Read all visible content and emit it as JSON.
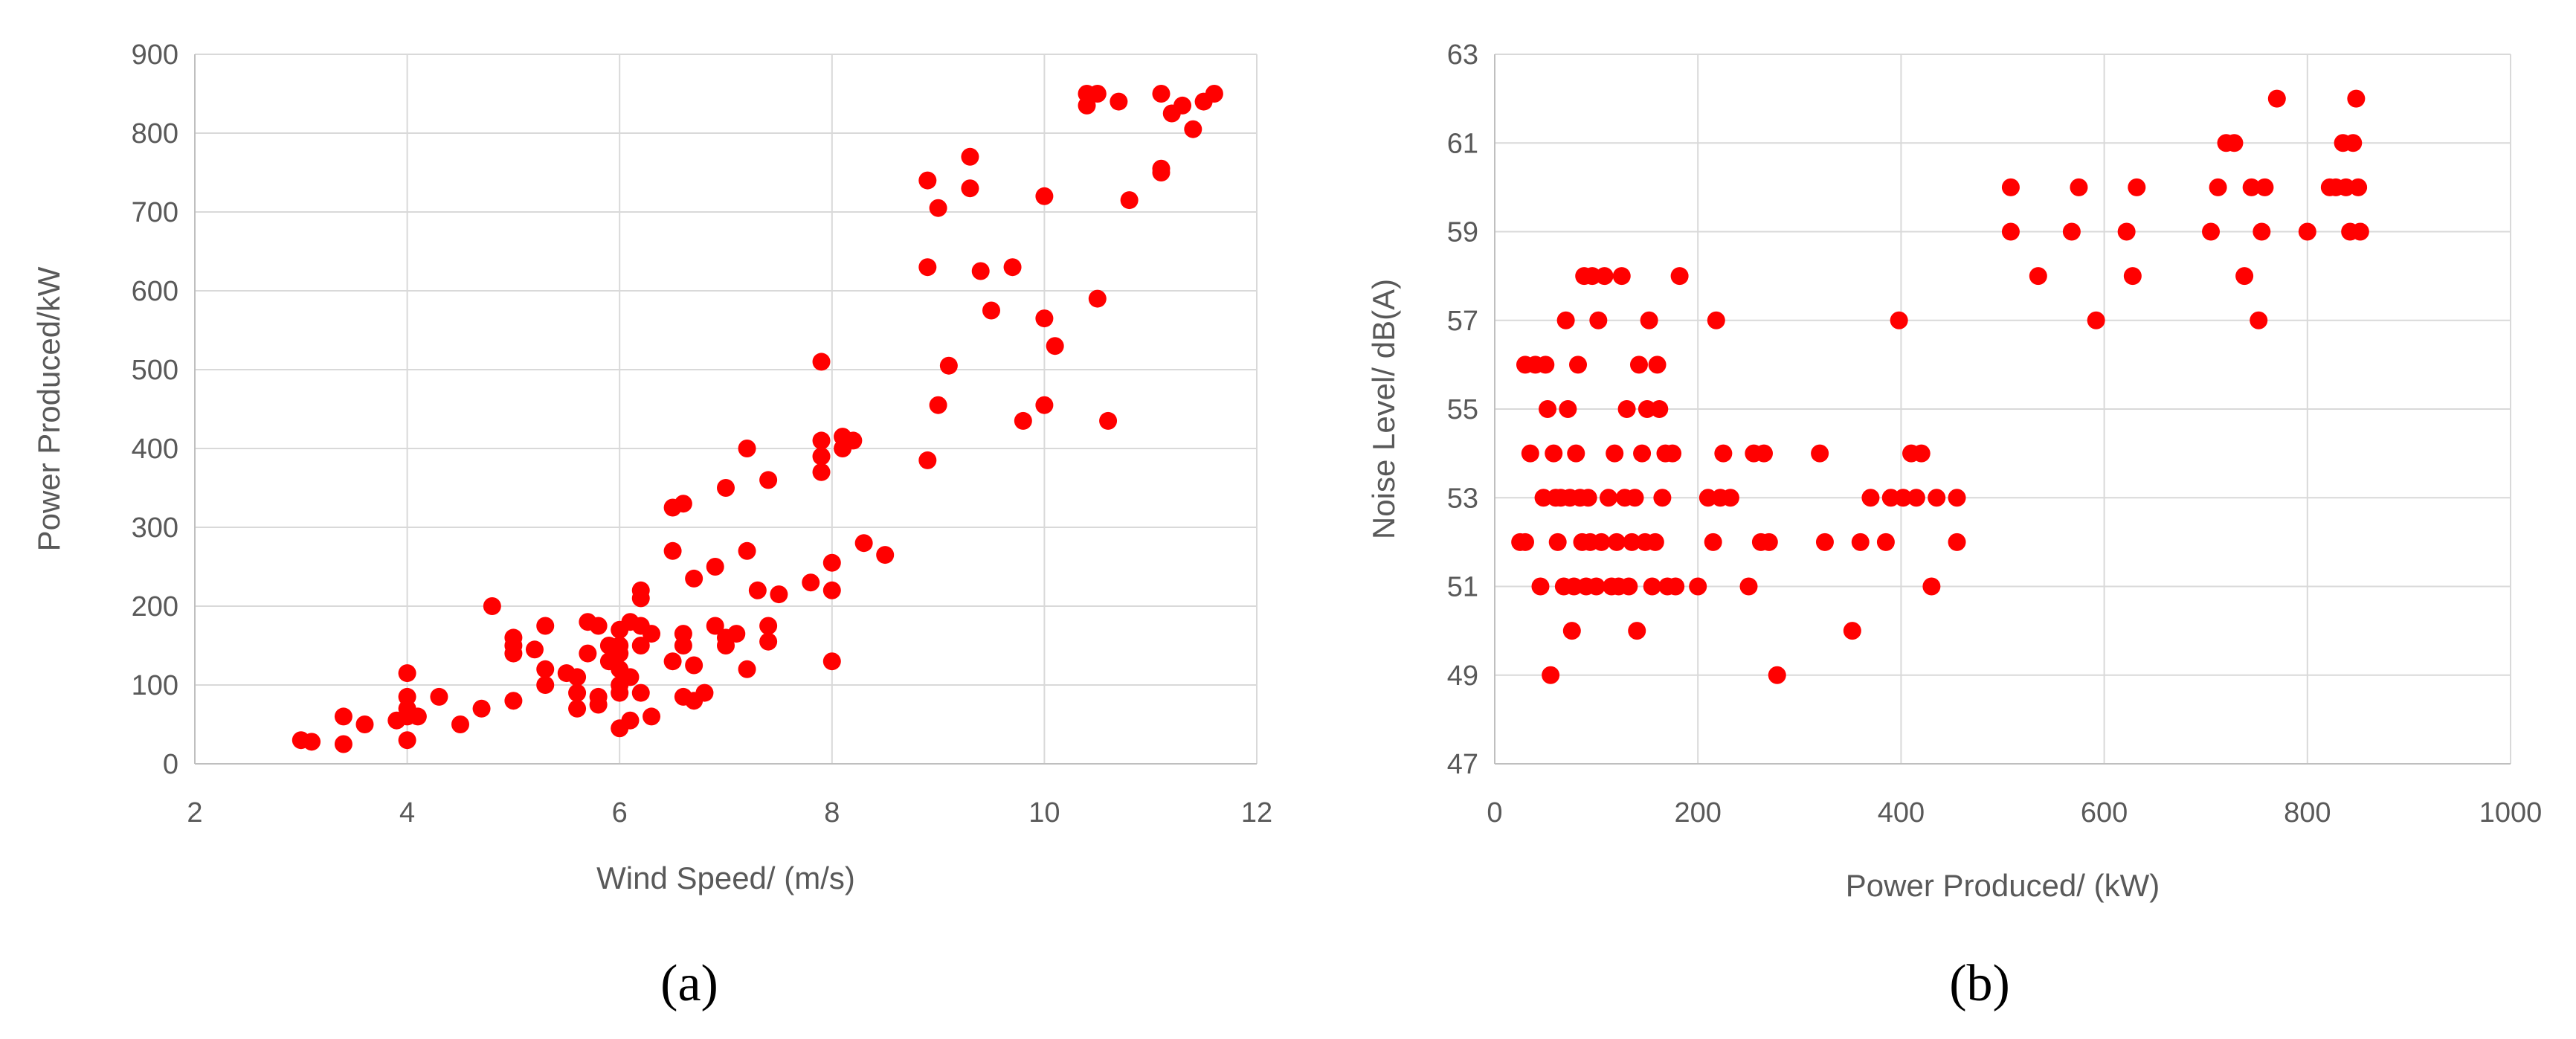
{
  "colors": {
    "marker": "#ff0000",
    "grid": "#d9d9d9",
    "axis_text": "#595959"
  },
  "chart_data": [
    {
      "type": "scatter",
      "panel_label": "(a)",
      "title": "",
      "xlabel": "Wind Speed/ (m/s)",
      "ylabel": "Power Produced/kW",
      "xlim": [
        2,
        12
      ],
      "ylim": [
        0,
        900
      ],
      "x_ticks": [
        2,
        4,
        6,
        8,
        10,
        12
      ],
      "y_ticks": [
        0,
        100,
        200,
        300,
        400,
        500,
        600,
        700,
        800,
        900
      ],
      "grid": true,
      "legend": "none",
      "series": [
        {
          "color": "#ff0000",
          "points": [
            [
              3.0,
              30
            ],
            [
              3.1,
              28
            ],
            [
              3.4,
              60
            ],
            [
              3.4,
              25
            ],
            [
              3.6,
              50
            ],
            [
              3.9,
              55
            ],
            [
              4.0,
              115
            ],
            [
              4.0,
              85
            ],
            [
              4.0,
              70
            ],
            [
              4.0,
              60
            ],
            [
              4.0,
              30
            ],
            [
              4.1,
              60
            ],
            [
              4.3,
              85
            ],
            [
              4.5,
              50
            ],
            [
              4.7,
              70
            ],
            [
              4.8,
              200
            ],
            [
              5.0,
              160
            ],
            [
              5.0,
              150
            ],
            [
              5.0,
              140
            ],
            [
              5.0,
              80
            ],
            [
              5.2,
              145
            ],
            [
              5.3,
              120
            ],
            [
              5.3,
              100
            ],
            [
              5.3,
              175
            ],
            [
              5.5,
              115
            ],
            [
              5.6,
              110
            ],
            [
              5.6,
              90
            ],
            [
              5.6,
              70
            ],
            [
              5.7,
              180
            ],
            [
              5.7,
              140
            ],
            [
              5.8,
              175
            ],
            [
              5.8,
              85
            ],
            [
              5.8,
              75
            ],
            [
              5.9,
              150
            ],
            [
              5.9,
              130
            ],
            [
              6.0,
              170
            ],
            [
              6.0,
              150
            ],
            [
              6.0,
              140
            ],
            [
              6.0,
              120
            ],
            [
              6.0,
              100
            ],
            [
              6.0,
              90
            ],
            [
              6.0,
              45
            ],
            [
              6.1,
              180
            ],
            [
              6.1,
              110
            ],
            [
              6.1,
              55
            ],
            [
              6.2,
              220
            ],
            [
              6.2,
              210
            ],
            [
              6.2,
              175
            ],
            [
              6.2,
              150
            ],
            [
              6.2,
              90
            ],
            [
              6.3,
              165
            ],
            [
              6.3,
              60
            ],
            [
              6.5,
              325
            ],
            [
              6.5,
              270
            ],
            [
              6.5,
              130
            ],
            [
              6.6,
              330
            ],
            [
              6.6,
              165
            ],
            [
              6.6,
              150
            ],
            [
              6.6,
              85
            ],
            [
              6.7,
              235
            ],
            [
              6.7,
              80
            ],
            [
              6.7,
              125
            ],
            [
              6.8,
              90
            ],
            [
              6.9,
              250
            ],
            [
              6.9,
              175
            ],
            [
              7.0,
              350
            ],
            [
              7.0,
              160
            ],
            [
              7.0,
              150
            ],
            [
              7.1,
              165
            ],
            [
              7.2,
              400
            ],
            [
              7.2,
              270
            ],
            [
              7.2,
              120
            ],
            [
              7.3,
              220
            ],
            [
              7.4,
              360
            ],
            [
              7.4,
              175
            ],
            [
              7.4,
              155
            ],
            [
              7.5,
              215
            ],
            [
              7.8,
              230
            ],
            [
              7.9,
              510
            ],
            [
              7.9,
              410
            ],
            [
              7.9,
              390
            ],
            [
              7.9,
              370
            ],
            [
              8.0,
              255
            ],
            [
              8.0,
              220
            ],
            [
              8.0,
              130
            ],
            [
              8.1,
              415
            ],
            [
              8.1,
              400
            ],
            [
              8.2,
              410
            ],
            [
              8.3,
              280
            ],
            [
              8.5,
              265
            ],
            [
              8.9,
              740
            ],
            [
              8.9,
              630
            ],
            [
              8.9,
              385
            ],
            [
              9.0,
              705
            ],
            [
              9.0,
              455
            ],
            [
              9.1,
              505
            ],
            [
              9.3,
              770
            ],
            [
              9.3,
              730
            ],
            [
              9.4,
              625
            ],
            [
              9.5,
              575
            ],
            [
              9.7,
              630
            ],
            [
              9.8,
              435
            ],
            [
              10.0,
              720
            ],
            [
              10.0,
              565
            ],
            [
              10.0,
              455
            ],
            [
              10.1,
              530
            ],
            [
              10.4,
              850
            ],
            [
              10.4,
              835
            ],
            [
              10.5,
              850
            ],
            [
              10.5,
              590
            ],
            [
              10.6,
              435
            ],
            [
              10.7,
              840
            ],
            [
              10.8,
              715
            ],
            [
              11.1,
              850
            ],
            [
              11.1,
              755
            ],
            [
              11.1,
              750
            ],
            [
              11.2,
              825
            ],
            [
              11.3,
              835
            ],
            [
              11.4,
              805
            ],
            [
              11.5,
              840
            ],
            [
              11.6,
              850
            ]
          ]
        }
      ]
    },
    {
      "type": "scatter",
      "panel_label": "(b)",
      "title": "",
      "xlabel": "Power Produced/ (kW)",
      "ylabel": "Noise Level/ dB(A)",
      "xlim": [
        0,
        1000
      ],
      "ylim": [
        47,
        63
      ],
      "x_ticks": [
        0,
        200,
        400,
        600,
        800,
        1000
      ],
      "y_ticks": [
        47,
        49,
        51,
        53,
        55,
        57,
        59,
        61,
        63
      ],
      "grid": true,
      "legend": "none",
      "series": [
        {
          "color": "#ff0000",
          "points": [
            [
              25,
              52
            ],
            [
              30,
              52
            ],
            [
              30,
              56
            ],
            [
              35,
              54
            ],
            [
              40,
              56
            ],
            [
              45,
              51
            ],
            [
              48,
              53
            ],
            [
              50,
              56
            ],
            [
              52,
              55
            ],
            [
              55,
              49
            ],
            [
              58,
              54
            ],
            [
              60,
              53
            ],
            [
              62,
              52
            ],
            [
              65,
              53
            ],
            [
              68,
              51
            ],
            [
              70,
              57
            ],
            [
              72,
              55
            ],
            [
              74,
              53
            ],
            [
              76,
              50
            ],
            [
              78,
              51
            ],
            [
              80,
              54
            ],
            [
              82,
              56
            ],
            [
              84,
              53
            ],
            [
              86,
              52
            ],
            [
              88,
              58
            ],
            [
              90,
              51
            ],
            [
              92,
              53
            ],
            [
              94,
              52
            ],
            [
              96,
              58
            ],
            [
              100,
              51
            ],
            [
              102,
              57
            ],
            [
              105,
              52
            ],
            [
              108,
              58
            ],
            [
              112,
              53
            ],
            [
              115,
              51
            ],
            [
              118,
              54
            ],
            [
              120,
              52
            ],
            [
              122,
              51
            ],
            [
              125,
              58
            ],
            [
              128,
              53
            ],
            [
              130,
              55
            ],
            [
              132,
              51
            ],
            [
              135,
              52
            ],
            [
              138,
              53
            ],
            [
              140,
              50
            ],
            [
              142,
              56
            ],
            [
              145,
              54
            ],
            [
              148,
              52
            ],
            [
              150,
              55
            ],
            [
              152,
              57
            ],
            [
              155,
              51
            ],
            [
              158,
              52
            ],
            [
              160,
              56
            ],
            [
              162,
              55
            ],
            [
              165,
              53
            ],
            [
              168,
              54
            ],
            [
              170,
              51
            ],
            [
              175,
              54
            ],
            [
              178,
              51
            ],
            [
              182,
              58
            ],
            [
              200,
              51
            ],
            [
              210,
              53
            ],
            [
              215,
              52
            ],
            [
              218,
              57
            ],
            [
              222,
              53
            ],
            [
              225,
              54
            ],
            [
              232,
              53
            ],
            [
              250,
              51
            ],
            [
              255,
              54
            ],
            [
              262,
              52
            ],
            [
              265,
              54
            ],
            [
              270,
              52
            ],
            [
              278,
              49
            ],
            [
              320,
              54
            ],
            [
              325,
              52
            ],
            [
              352,
              50
            ],
            [
              360,
              52
            ],
            [
              370,
              53
            ],
            [
              385,
              52
            ],
            [
              390,
              53
            ],
            [
              398,
              57
            ],
            [
              402,
              53
            ],
            [
              410,
              54
            ],
            [
              415,
              53
            ],
            [
              420,
              54
            ],
            [
              430,
              51
            ],
            [
              435,
              53
            ],
            [
              455,
              52
            ],
            [
              455,
              53
            ],
            [
              508,
              60
            ],
            [
              508,
              59
            ],
            [
              535,
              58
            ],
            [
              568,
              59
            ],
            [
              575,
              60
            ],
            [
              592,
              57
            ],
            [
              622,
              59
            ],
            [
              628,
              58
            ],
            [
              632,
              60
            ],
            [
              705,
              59
            ],
            [
              712,
              60
            ],
            [
              720,
              61
            ],
            [
              728,
              61
            ],
            [
              738,
              58
            ],
            [
              745,
              60
            ],
            [
              752,
              57
            ],
            [
              755,
              59
            ],
            [
              758,
              60
            ],
            [
              770,
              62
            ],
            [
              800,
              59
            ],
            [
              822,
              60
            ],
            [
              828,
              60
            ],
            [
              835,
              61
            ],
            [
              838,
              60
            ],
            [
              842,
              59
            ],
            [
              845,
              61
            ],
            [
              848,
              62
            ],
            [
              850,
              60
            ],
            [
              852,
              59
            ]
          ]
        }
      ]
    }
  ]
}
